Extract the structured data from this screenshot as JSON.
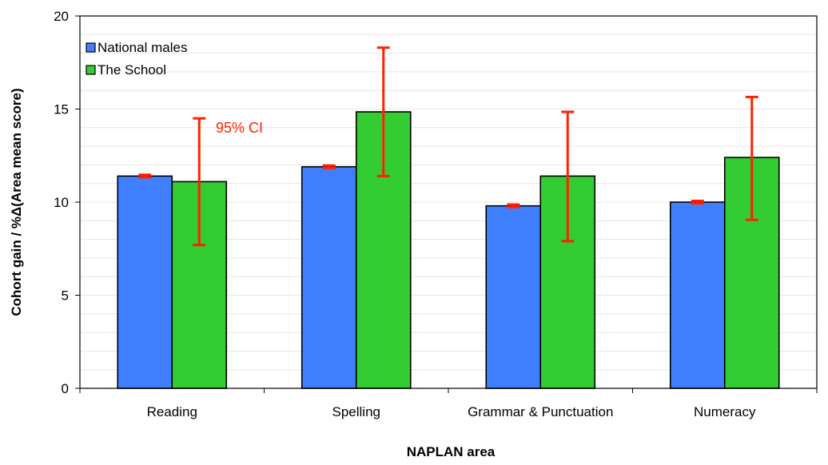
{
  "chart_data": {
    "type": "bar",
    "title": "",
    "xlabel": "NAPLAN area",
    "ylabel": "Cohort gain / %Δ(Area mean score)",
    "ylim": [
      0,
      20
    ],
    "yticks": [
      "0",
      "5",
      "10",
      "15",
      "20"
    ],
    "grid": "horizontal minor gridlines every 1 unit",
    "legend_position": "top-left",
    "categories": [
      "Reading",
      "Spelling",
      "Grammar & Punctuation",
      "Numeracy"
    ],
    "series": [
      {
        "name": "National males",
        "color": "#4080ff",
        "values": [
          11.4,
          11.9,
          9.8,
          10.0
        ],
        "ci_low": [
          11.33,
          11.83,
          9.73,
          9.93
        ],
        "ci_high": [
          11.47,
          11.97,
          9.87,
          10.07
        ]
      },
      {
        "name": "The School",
        "color": "#33cc33",
        "values": [
          11.1,
          14.85,
          11.4,
          12.4
        ],
        "ci_low": [
          7.7,
          11.4,
          7.9,
          9.05
        ],
        "ci_high": [
          14.5,
          18.3,
          14.85,
          15.65
        ]
      }
    ],
    "error_bar_color": "#ff2200",
    "annotations": [
      {
        "text": "95% CI",
        "color": "#ff2200"
      }
    ]
  }
}
